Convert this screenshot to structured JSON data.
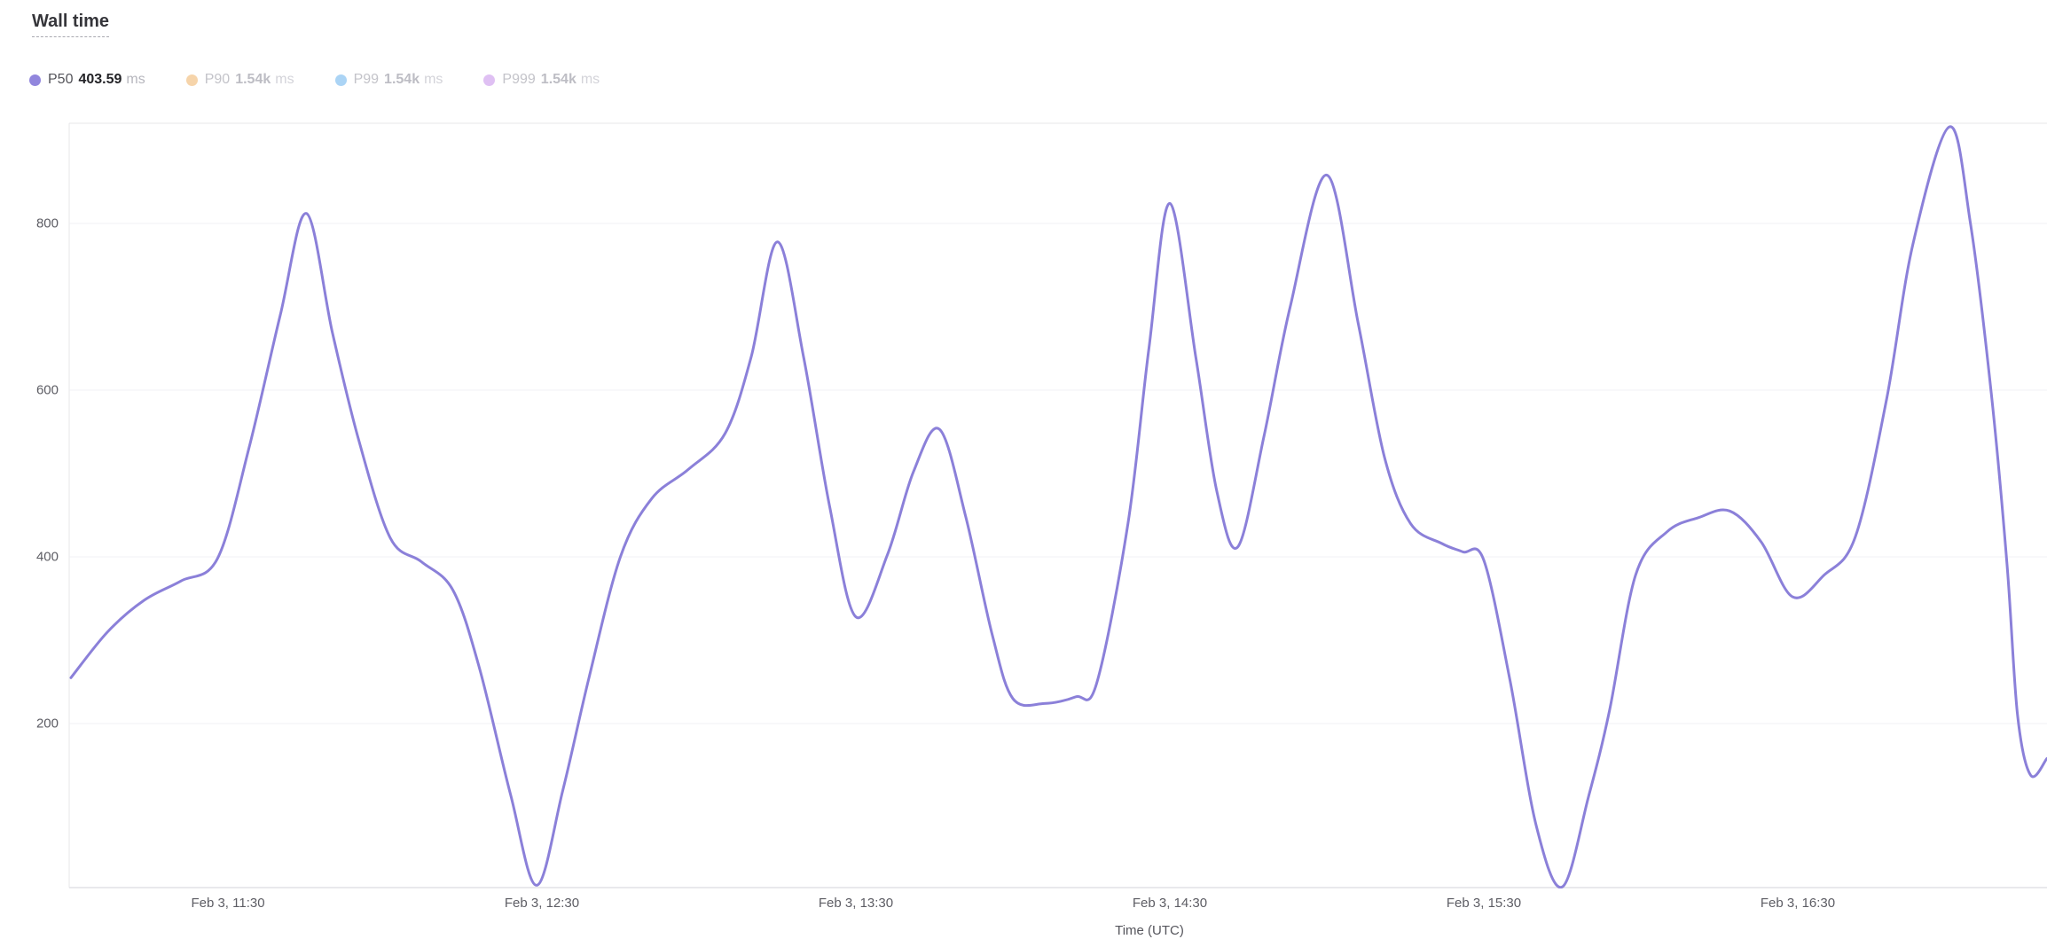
{
  "header": {
    "title": "Wall time"
  },
  "legend": {
    "items": [
      {
        "name": "P50",
        "value": "403.59",
        "unit": "ms",
        "color": "#9186dd",
        "active": true
      },
      {
        "name": "P90",
        "value": "1.54k",
        "unit": "ms",
        "color": "#f6d4aa",
        "active": false
      },
      {
        "name": "P99",
        "value": "1.54k",
        "unit": "ms",
        "color": "#abd4f5",
        "active": false
      },
      {
        "name": "P999",
        "value": "1.54k",
        "unit": "ms",
        "color": "#dfc0f3",
        "active": false
      }
    ]
  },
  "chart_data": {
    "type": "line",
    "title": "Wall time",
    "xlabel": "Time (UTC)",
    "ylabel": "",
    "unit": "ms",
    "grid": "horizontal",
    "legend_position": "top-left",
    "x_tick_labels": [
      "Feb 3, 11:30",
      "Feb 3, 12:30",
      "Feb 3, 13:30",
      "Feb 3, 14:30",
      "Feb 3, 15:30",
      "Feb 3, 16:30"
    ],
    "x_tick_minutes": [
      30,
      90,
      150,
      210,
      270,
      330
    ],
    "xlim_minutes": [
      0,
      378
    ],
    "y_ticks": [
      200,
      400,
      600,
      800
    ],
    "ylim": [
      0,
      920
    ],
    "series": [
      {
        "name": "P50",
        "color": "#8b80d9",
        "visible": true,
        "points_minutes_vs_ms": [
          [
            0,
            255
          ],
          [
            7,
            310
          ],
          [
            14,
            348
          ],
          [
            21,
            371
          ],
          [
            28,
            398
          ],
          [
            34,
            530
          ],
          [
            40,
            690
          ],
          [
            45,
            812
          ],
          [
            50,
            668
          ],
          [
            55,
            540
          ],
          [
            61,
            423
          ],
          [
            67,
            394
          ],
          [
            73,
            360
          ],
          [
            78,
            268
          ],
          [
            84,
            115
          ],
          [
            89,
            6
          ],
          [
            94,
            120
          ],
          [
            99,
            255
          ],
          [
            105,
            400
          ],
          [
            111,
            470
          ],
          [
            118,
            505
          ],
          [
            125,
            548
          ],
          [
            130,
            640
          ],
          [
            135,
            778
          ],
          [
            140,
            640
          ],
          [
            145,
            460
          ],
          [
            150,
            328
          ],
          [
            156,
            402
          ],
          [
            161,
            502
          ],
          [
            166,
            553
          ],
          [
            171,
            448
          ],
          [
            176,
            308
          ],
          [
            180,
            230
          ],
          [
            186,
            224
          ],
          [
            192,
            232
          ],
          [
            196,
            248
          ],
          [
            202,
            440
          ],
          [
            206,
            650
          ],
          [
            210,
            824
          ],
          [
            215,
            638
          ],
          [
            219,
            478
          ],
          [
            223,
            412
          ],
          [
            228,
            545
          ],
          [
            233,
            700
          ],
          [
            240,
            858
          ],
          [
            246,
            680
          ],
          [
            251,
            520
          ],
          [
            256,
            440
          ],
          [
            262,
            416
          ],
          [
            266,
            406
          ],
          [
            270,
            396
          ],
          [
            275,
            252
          ],
          [
            280,
            78
          ],
          [
            285,
            4
          ],
          [
            290,
            112
          ],
          [
            294,
            215
          ],
          [
            299,
            378
          ],
          [
            305,
            430
          ],
          [
            311,
            447
          ],
          [
            317,
            455
          ],
          [
            323,
            418
          ],
          [
            329,
            352
          ],
          [
            335,
            378
          ],
          [
            341,
            424
          ],
          [
            347,
            590
          ],
          [
            352,
            775
          ],
          [
            359,
            916
          ],
          [
            363,
            800
          ],
          [
            367,
            595
          ],
          [
            370,
            390
          ],
          [
            372,
            210
          ],
          [
            374.5,
            138
          ],
          [
            377.6,
            158
          ]
        ]
      },
      {
        "name": "P90",
        "color": "#f6d4aa",
        "visible": false
      },
      {
        "name": "P99",
        "color": "#abd4f5",
        "visible": false
      },
      {
        "name": "P999",
        "color": "#dfc0f3",
        "visible": false
      }
    ]
  }
}
